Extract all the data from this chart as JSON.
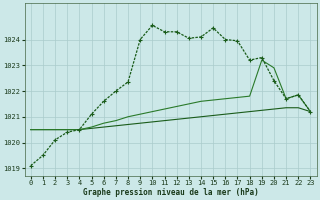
{
  "title": "Graphe pression niveau de la mer (hPa)",
  "background_color": "#cce8e8",
  "grid_color": "#aacccc",
  "line_color1": "#1a5c1a",
  "line_color2": "#1a5c1a",
  "line_color3": "#2a7a2a",
  "xlim": [
    -0.5,
    23.5
  ],
  "ylim": [
    1018.7,
    1025.4
  ],
  "yticks": [
    1019,
    1020,
    1021,
    1022,
    1023,
    1024
  ],
  "xticks": [
    0,
    1,
    2,
    3,
    4,
    5,
    6,
    7,
    8,
    9,
    10,
    11,
    12,
    13,
    14,
    15,
    16,
    17,
    18,
    19,
    20,
    21,
    22,
    23
  ],
  "series1_x": [
    0,
    1,
    2,
    3,
    4,
    5,
    6,
    7,
    8,
    9,
    10,
    11,
    12,
    13,
    14,
    15,
    16,
    17,
    18,
    19,
    20,
    21,
    22,
    23
  ],
  "series1_y": [
    1019.1,
    1019.5,
    1020.1,
    1020.4,
    1020.5,
    1021.1,
    1021.6,
    1022.0,
    1022.35,
    1024.0,
    1024.55,
    1024.3,
    1024.3,
    1024.05,
    1024.1,
    1024.45,
    1024.0,
    1023.95,
    1023.2,
    1023.3,
    1022.4,
    1021.7,
    1021.85,
    1021.2
  ],
  "series2_x": [
    0,
    1,
    2,
    3,
    4,
    5,
    6,
    7,
    8,
    9,
    10,
    11,
    12,
    13,
    14,
    15,
    16,
    17,
    18,
    19,
    20,
    21,
    22,
    23
  ],
  "series2_y": [
    1020.5,
    1020.5,
    1020.5,
    1020.5,
    1020.5,
    1020.55,
    1020.6,
    1020.65,
    1020.7,
    1020.75,
    1020.8,
    1020.85,
    1020.9,
    1020.95,
    1021.0,
    1021.05,
    1021.1,
    1021.15,
    1021.2,
    1021.25,
    1021.3,
    1021.35,
    1021.35,
    1021.2
  ],
  "series3_x": [
    0,
    1,
    2,
    3,
    4,
    5,
    6,
    7,
    8,
    9,
    10,
    11,
    12,
    13,
    14,
    15,
    16,
    17,
    18,
    19,
    20,
    21,
    22,
    23
  ],
  "series3_y": [
    1020.5,
    1020.5,
    1020.5,
    1020.5,
    1020.5,
    1020.6,
    1020.75,
    1020.85,
    1021.0,
    1021.1,
    1021.2,
    1021.3,
    1021.4,
    1021.5,
    1021.6,
    1021.65,
    1021.7,
    1021.75,
    1021.8,
    1023.2,
    1022.9,
    1021.7,
    1021.85,
    1021.2
  ]
}
